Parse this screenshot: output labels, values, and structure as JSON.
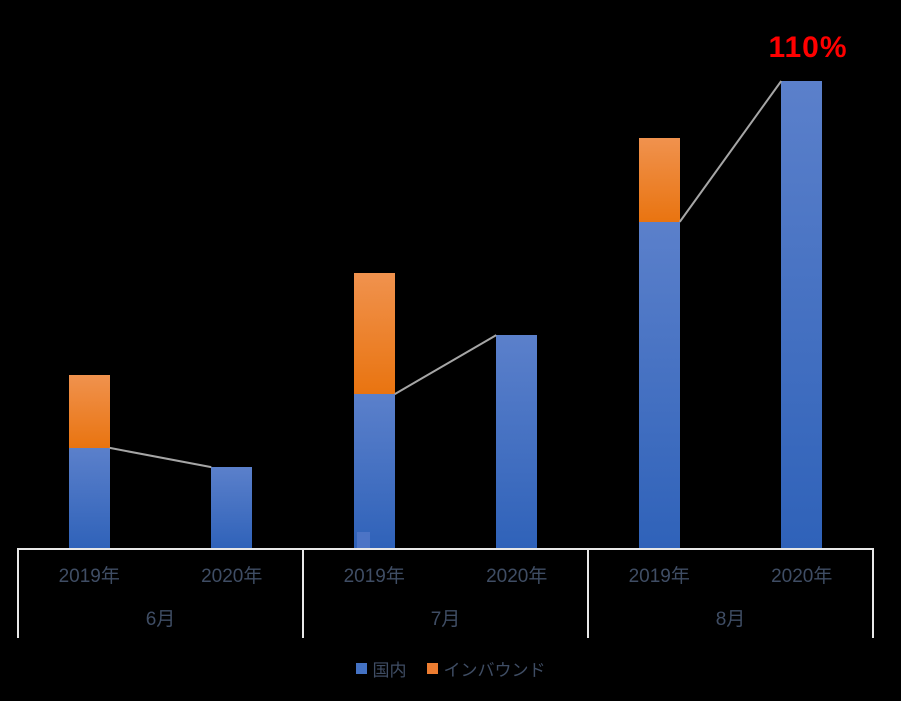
{
  "chart_data": {
    "type": "bar",
    "stacked": true,
    "grid": false,
    "value_axis_visible": false,
    "units_note": "relative units estimated from pixels; 8月 2020年 国内 bar = 100",
    "series": [
      {
        "name": "国内",
        "key": "domestic",
        "color": "#4472C4",
        "gradient_top": "#5B80CB",
        "gradient_bottom": "#2F62B9"
      },
      {
        "name": "インバウンド",
        "key": "inbound",
        "color": "#ED7D31",
        "gradient_top": "#F0924E",
        "gradient_bottom": "#E97410"
      }
    ],
    "months": [
      {
        "label": "6月",
        "key": "jun",
        "columns": [
          {
            "label": "2019年",
            "key": "2019",
            "segments": [
              {
                "series": "国内",
                "value": 21.6
              },
              {
                "series": "インバウンド",
                "value": 15.6
              }
            ]
          },
          {
            "label": "2020年",
            "key": "2020",
            "segments": [
              {
                "series": "国内",
                "value": 17.5
              }
            ]
          }
        ]
      },
      {
        "label": "7月",
        "key": "jul",
        "columns": [
          {
            "label": "2019年",
            "key": "2019",
            "segments": [
              {
                "series": "国内",
                "value": 33.1
              },
              {
                "series": "インバウンド",
                "value": 25.9
              }
            ]
          },
          {
            "label": "2020年",
            "key": "2020",
            "segments": [
              {
                "series": "国内",
                "value": 45.7
              }
            ]
          }
        ]
      },
      {
        "label": "8月",
        "key": "aug",
        "columns": [
          {
            "label": "2019年",
            "key": "2019",
            "segments": [
              {
                "series": "国内",
                "value": 69.9
              },
              {
                "series": "インバウンド",
                "value": 17.9
              }
            ]
          },
          {
            "label": "2020年",
            "key": "2020",
            "segments": [
              {
                "series": "国内",
                "value": 100
              }
            ]
          }
        ]
      }
    ],
    "connector_lines": [
      {
        "month": "6月",
        "from_value": 21.6,
        "to_value": 17.5
      },
      {
        "month": "7月",
        "from_value": 33.1,
        "to_value": 45.7
      },
      {
        "month": "8月",
        "from_value": 69.9,
        "to_value": 100
      }
    ],
    "annotation": {
      "text": "110%",
      "color": "#FF0000",
      "anchor": "above 8月 2020年 bar"
    }
  },
  "legend": {
    "items": [
      {
        "label": "国内",
        "color": "#4472C4"
      },
      {
        "label": "インバウンド",
        "color": "#ED7D31"
      }
    ]
  },
  "colors": {
    "background": "#000000",
    "axis_line": "#E8E8E8",
    "connector_line": "#A6A6A6",
    "category_label": "#3F4D64",
    "annotation_red": "#FF0000",
    "selection_artifact": "#4C74C6"
  }
}
